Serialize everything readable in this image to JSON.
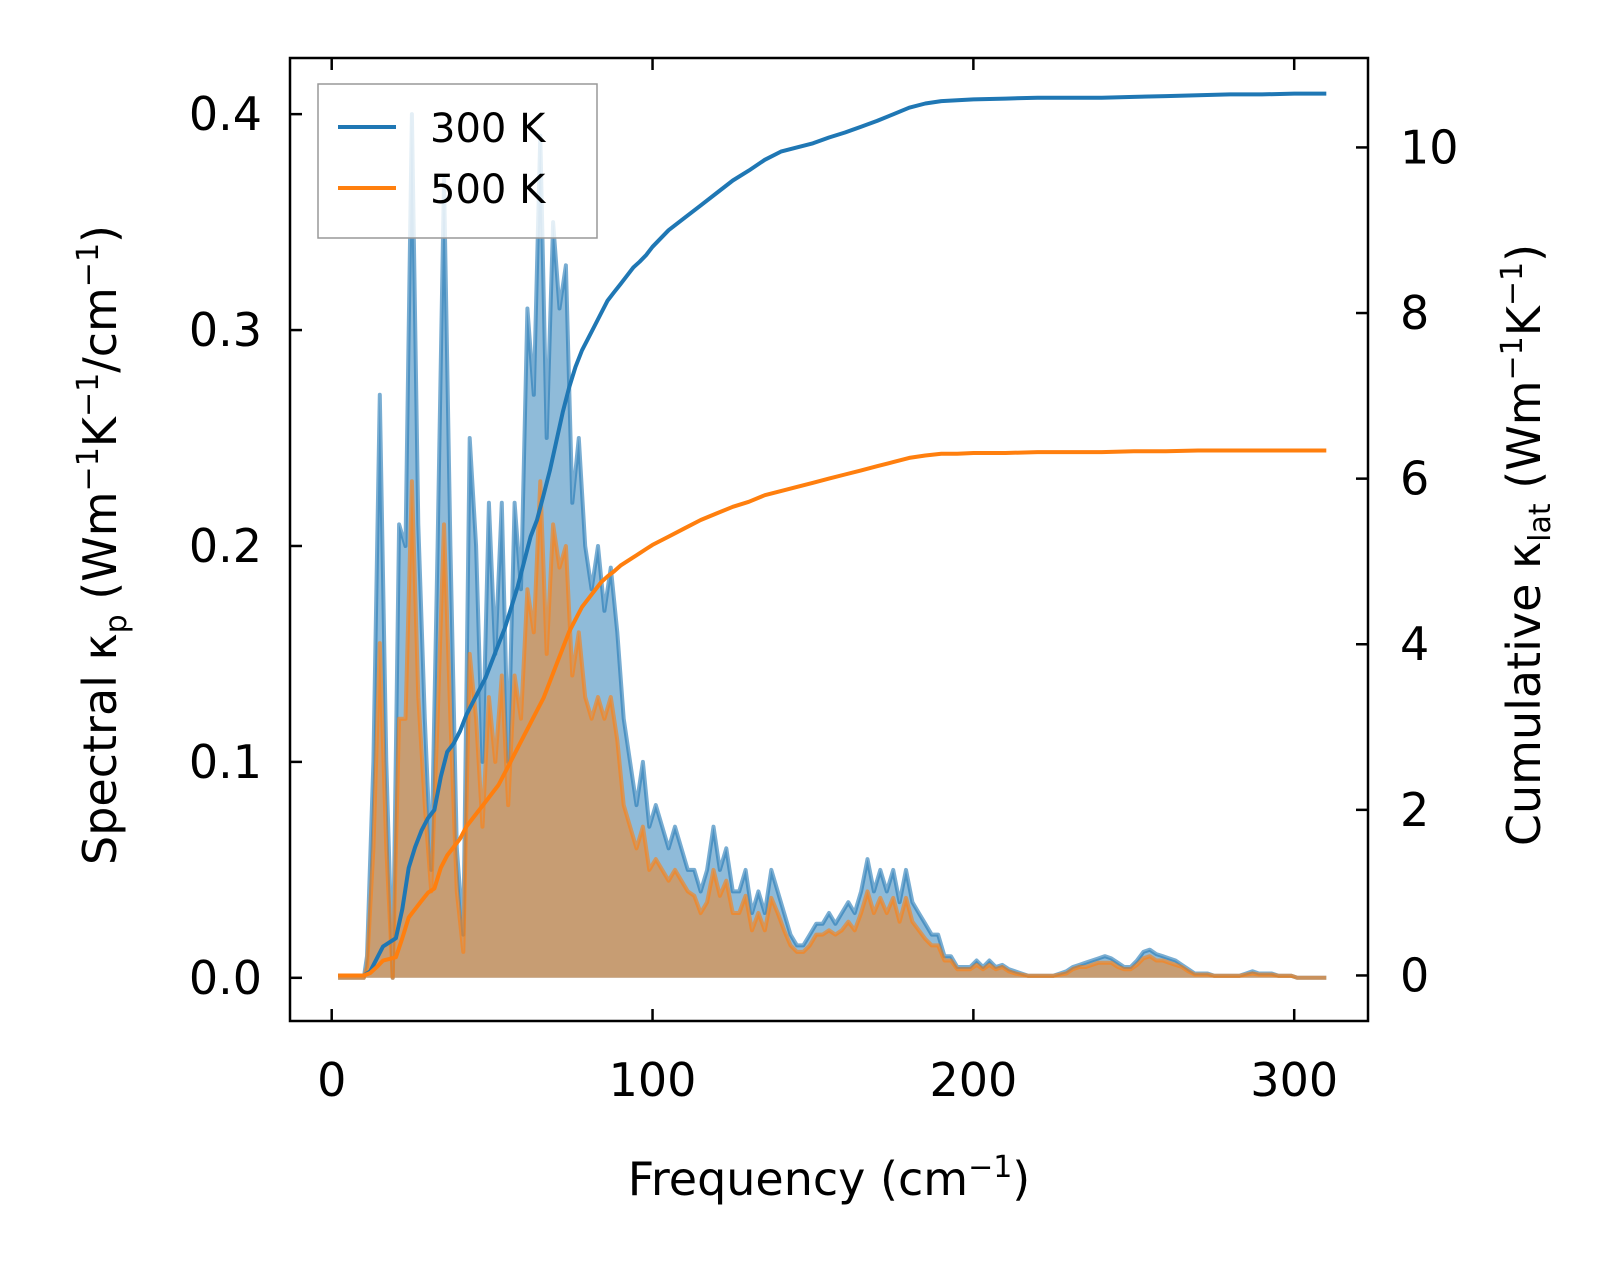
{
  "chart_data": {
    "type": "line",
    "xlabel": "Frequency (cm",
    "xlabel_sup": "−1",
    "xlabel_tail": ")",
    "ylabel_left": {
      "prefix": "Spectral κ",
      "sub": "p",
      "units_open": " (Wm",
      "sup1": "−1",
      "k": "K",
      "sup2": "−1",
      "tail": "/cm",
      "sup3": "−1",
      "close": ")"
    },
    "ylabel_right": {
      "prefix": "Cumulative κ",
      "sub": "lat",
      "units_open": " (Wm",
      "sup1": "−1",
      "k": "K",
      "sup2": "−1",
      "close": ")"
    },
    "xlim": [
      -13,
      323
    ],
    "ylim_left": [
      -0.02,
      0.426
    ],
    "ylim_right": [
      -0.55,
      11.08
    ],
    "x_ticks": [
      {
        "value": 0,
        "label": "0"
      },
      {
        "value": 100,
        "label": "100"
      },
      {
        "value": 200,
        "label": "200"
      },
      {
        "value": 300,
        "label": "300"
      }
    ],
    "y_left_ticks": [
      {
        "value": 0.0,
        "label": "0.0"
      },
      {
        "value": 0.1,
        "label": "0.1"
      },
      {
        "value": 0.2,
        "label": "0.2"
      },
      {
        "value": 0.3,
        "label": "0.3"
      },
      {
        "value": 0.4,
        "label": "0.4"
      }
    ],
    "y_right_ticks": [
      {
        "value": 0,
        "label": "0"
      },
      {
        "value": 2,
        "label": "2"
      },
      {
        "value": 4,
        "label": "4"
      },
      {
        "value": 6,
        "label": "6"
      },
      {
        "value": 8,
        "label": "8"
      },
      {
        "value": 10,
        "label": "10"
      }
    ],
    "legend": {
      "position": "top-left",
      "entries": [
        "300 K",
        "500 K"
      ]
    },
    "series": [
      {
        "name": "300 K",
        "color": "#1f77b4",
        "fill_color": "#1f77b4",
        "spectral_x": [
          2,
          10,
          11,
          13,
          15,
          17,
          19,
          21,
          23,
          25,
          27,
          29,
          31,
          33,
          35,
          37,
          39,
          41,
          43,
          45,
          47,
          49,
          51,
          53,
          55,
          57,
          59,
          61,
          63,
          65,
          67,
          69,
          71,
          73,
          75,
          77,
          79,
          81,
          83,
          85,
          87,
          89,
          91,
          93,
          95,
          97,
          99,
          101,
          103,
          105,
          107,
          109,
          111,
          113,
          115,
          117,
          119,
          121,
          123,
          125,
          127,
          129,
          131,
          133,
          135,
          137,
          139,
          141,
          143,
          145,
          147,
          149,
          151,
          153,
          155,
          157,
          159,
          161,
          163,
          165,
          167,
          169,
          171,
          173,
          175,
          177,
          179,
          181,
          183,
          185,
          187,
          189,
          191,
          193,
          195,
          197,
          199,
          201,
          203,
          205,
          207,
          209,
          211,
          213,
          215,
          217,
          219,
          221,
          223,
          225,
          227,
          229,
          231,
          233,
          235,
          237,
          239,
          241,
          243,
          245,
          247,
          249,
          251,
          253,
          255,
          257,
          259,
          261,
          263,
          265,
          267,
          269,
          271,
          273,
          275,
          277,
          279,
          281,
          283,
          285,
          287,
          289,
          291,
          293,
          295,
          297,
          299,
          301,
          303,
          305,
          307,
          310
        ],
        "spectral_y": [
          0,
          0,
          0.01,
          0.1,
          0.27,
          0.1,
          0.0,
          0.21,
          0.2,
          0.4,
          0.21,
          0.12,
          0.05,
          0.2,
          0.37,
          0.2,
          0.06,
          0.02,
          0.25,
          0.2,
          0.1,
          0.22,
          0.15,
          0.22,
          0.1,
          0.22,
          0.18,
          0.31,
          0.27,
          0.39,
          0.25,
          0.35,
          0.31,
          0.33,
          0.22,
          0.25,
          0.2,
          0.18,
          0.2,
          0.17,
          0.19,
          0.16,
          0.12,
          0.1,
          0.08,
          0.1,
          0.07,
          0.08,
          0.07,
          0.06,
          0.07,
          0.06,
          0.05,
          0.05,
          0.04,
          0.05,
          0.07,
          0.05,
          0.06,
          0.04,
          0.04,
          0.05,
          0.03,
          0.04,
          0.03,
          0.05,
          0.04,
          0.03,
          0.02,
          0.015,
          0.015,
          0.02,
          0.025,
          0.025,
          0.03,
          0.025,
          0.03,
          0.035,
          0.03,
          0.04,
          0.055,
          0.04,
          0.05,
          0.04,
          0.05,
          0.035,
          0.05,
          0.035,
          0.03,
          0.025,
          0.02,
          0.02,
          0.01,
          0.01,
          0.005,
          0.005,
          0.005,
          0.008,
          0.005,
          0.008,
          0.005,
          0.006,
          0.004,
          0.003,
          0.002,
          0.001,
          0.001,
          0.001,
          0.001,
          0.001,
          0.002,
          0.003,
          0.005,
          0.006,
          0.007,
          0.008,
          0.009,
          0.01,
          0.009,
          0.007,
          0.005,
          0.005,
          0.008,
          0.012,
          0.013,
          0.011,
          0.01,
          0.009,
          0.008,
          0.006,
          0.004,
          0.002,
          0.002,
          0.002,
          0.001,
          0.001,
          0.001,
          0.001,
          0.001,
          0.002,
          0.003,
          0.002,
          0.002,
          0.002,
          0.001,
          0.001,
          0.001,
          0,
          0,
          0,
          0,
          0
        ],
        "cumulative_x": [
          2,
          5,
          8,
          10,
          12,
          14,
          16,
          18,
          20,
          22,
          24,
          26,
          28,
          30,
          32,
          34,
          36,
          38,
          40,
          42,
          44,
          46,
          48,
          50,
          52,
          54,
          56,
          58,
          60,
          62,
          64,
          66,
          68,
          70,
          72,
          74,
          76,
          78,
          80,
          82,
          84,
          86,
          88,
          90,
          92,
          94,
          96,
          98,
          100,
          105,
          110,
          115,
          120,
          125,
          130,
          135,
          140,
          145,
          150,
          155,
          160,
          165,
          170,
          175,
          180,
          185,
          190,
          195,
          200,
          210,
          220,
          230,
          240,
          250,
          260,
          270,
          280,
          290,
          300,
          310
        ],
        "cumulative_y": [
          0,
          0,
          0,
          0,
          0.05,
          0.2,
          0.35,
          0.4,
          0.45,
          0.8,
          1.3,
          1.55,
          1.75,
          1.9,
          2.0,
          2.4,
          2.7,
          2.8,
          2.95,
          3.15,
          3.3,
          3.45,
          3.6,
          3.8,
          4.0,
          4.2,
          4.45,
          4.7,
          5.0,
          5.3,
          5.5,
          5.8,
          6.1,
          6.45,
          6.8,
          7.1,
          7.35,
          7.55,
          7.7,
          7.85,
          8.0,
          8.15,
          8.25,
          8.35,
          8.45,
          8.55,
          8.62,
          8.7,
          8.8,
          9.0,
          9.15,
          9.3,
          9.45,
          9.6,
          9.72,
          9.85,
          9.95,
          10.0,
          10.05,
          10.12,
          10.18,
          10.25,
          10.32,
          10.4,
          10.48,
          10.53,
          10.56,
          10.57,
          10.58,
          10.59,
          10.6,
          10.6,
          10.6,
          10.61,
          10.62,
          10.63,
          10.64,
          10.64,
          10.65,
          10.65
        ]
      },
      {
        "name": "500 K",
        "color": "#ff7f0e",
        "fill_color": "#ff7f0e",
        "spectral_x": [
          2,
          10,
          11,
          13,
          15,
          17,
          19,
          21,
          23,
          25,
          27,
          29,
          31,
          33,
          35,
          37,
          39,
          41,
          43,
          45,
          47,
          49,
          51,
          53,
          55,
          57,
          59,
          61,
          63,
          65,
          67,
          69,
          71,
          73,
          75,
          77,
          79,
          81,
          83,
          85,
          87,
          89,
          91,
          93,
          95,
          97,
          99,
          101,
          103,
          105,
          107,
          109,
          111,
          113,
          115,
          117,
          119,
          121,
          123,
          125,
          127,
          129,
          131,
          133,
          135,
          137,
          139,
          141,
          143,
          145,
          147,
          149,
          151,
          153,
          155,
          157,
          159,
          161,
          163,
          165,
          167,
          169,
          171,
          173,
          175,
          177,
          179,
          181,
          183,
          185,
          187,
          189,
          191,
          193,
          195,
          197,
          199,
          201,
          203,
          205,
          207,
          209,
          211,
          213,
          215,
          217,
          219,
          221,
          223,
          225,
          227,
          229,
          231,
          233,
          235,
          237,
          239,
          241,
          243,
          245,
          247,
          249,
          251,
          253,
          255,
          257,
          259,
          261,
          263,
          265,
          267,
          269,
          271,
          273,
          275,
          277,
          279,
          281,
          283,
          285,
          287,
          289,
          291,
          293,
          295,
          297,
          299,
          301,
          303,
          305,
          307,
          310
        ],
        "spectral_y": [
          0,
          0,
          0.005,
          0.06,
          0.155,
          0.06,
          0.0,
          0.12,
          0.12,
          0.23,
          0.13,
          0.08,
          0.04,
          0.12,
          0.21,
          0.12,
          0.04,
          0.012,
          0.15,
          0.12,
          0.07,
          0.13,
          0.1,
          0.14,
          0.08,
          0.14,
          0.12,
          0.18,
          0.16,
          0.23,
          0.15,
          0.21,
          0.19,
          0.2,
          0.14,
          0.16,
          0.13,
          0.12,
          0.13,
          0.12,
          0.13,
          0.11,
          0.08,
          0.07,
          0.06,
          0.07,
          0.05,
          0.055,
          0.05,
          0.045,
          0.05,
          0.045,
          0.04,
          0.038,
          0.03,
          0.035,
          0.05,
          0.038,
          0.045,
          0.03,
          0.03,
          0.038,
          0.022,
          0.03,
          0.022,
          0.037,
          0.03,
          0.022,
          0.015,
          0.012,
          0.012,
          0.015,
          0.02,
          0.02,
          0.022,
          0.02,
          0.022,
          0.026,
          0.022,
          0.03,
          0.04,
          0.03,
          0.037,
          0.03,
          0.037,
          0.026,
          0.037,
          0.026,
          0.022,
          0.018,
          0.015,
          0.015,
          0.008,
          0.008,
          0.004,
          0.004,
          0.004,
          0.006,
          0.004,
          0.006,
          0.004,
          0.005,
          0.003,
          0.002,
          0.0015,
          0.001,
          0.001,
          0.001,
          0.001,
          0.001,
          0.0015,
          0.002,
          0.004,
          0.005,
          0.005,
          0.006,
          0.007,
          0.007,
          0.007,
          0.005,
          0.004,
          0.004,
          0.006,
          0.009,
          0.01,
          0.008,
          0.008,
          0.007,
          0.006,
          0.005,
          0.003,
          0.0015,
          0.0015,
          0.0015,
          0.001,
          0.001,
          0.001,
          0.001,
          0.001,
          0.0015,
          0.002,
          0.0015,
          0.0015,
          0.0015,
          0.001,
          0.001,
          0.001,
          0,
          0,
          0,
          0,
          0
        ],
        "cumulative_x": [
          2,
          5,
          8,
          10,
          12,
          14,
          16,
          18,
          20,
          22,
          24,
          26,
          28,
          30,
          32,
          34,
          36,
          38,
          40,
          42,
          44,
          46,
          48,
          50,
          52,
          54,
          56,
          58,
          60,
          62,
          64,
          66,
          68,
          70,
          72,
          74,
          76,
          78,
          80,
          82,
          84,
          86,
          88,
          90,
          92,
          94,
          96,
          98,
          100,
          105,
          110,
          115,
          120,
          125,
          130,
          135,
          140,
          145,
          150,
          155,
          160,
          165,
          170,
          175,
          180,
          185,
          190,
          195,
          200,
          210,
          220,
          230,
          240,
          250,
          260,
          270,
          280,
          290,
          300,
          310
        ],
        "cumulative_y": [
          0,
          0,
          0,
          0,
          0.03,
          0.1,
          0.18,
          0.2,
          0.22,
          0.45,
          0.7,
          0.8,
          0.9,
          1.0,
          1.05,
          1.3,
          1.45,
          1.55,
          1.65,
          1.8,
          1.9,
          2.0,
          2.1,
          2.2,
          2.3,
          2.45,
          2.6,
          2.75,
          2.9,
          3.05,
          3.2,
          3.35,
          3.55,
          3.75,
          3.95,
          4.15,
          4.3,
          4.45,
          4.55,
          4.65,
          4.75,
          4.82,
          4.88,
          4.95,
          5.0,
          5.05,
          5.1,
          5.15,
          5.2,
          5.3,
          5.4,
          5.5,
          5.58,
          5.66,
          5.72,
          5.8,
          5.85,
          5.9,
          5.95,
          6.0,
          6.05,
          6.1,
          6.15,
          6.2,
          6.25,
          6.28,
          6.3,
          6.3,
          6.31,
          6.31,
          6.32,
          6.32,
          6.32,
          6.33,
          6.33,
          6.34,
          6.34,
          6.34,
          6.34,
          6.34
        ]
      }
    ]
  }
}
